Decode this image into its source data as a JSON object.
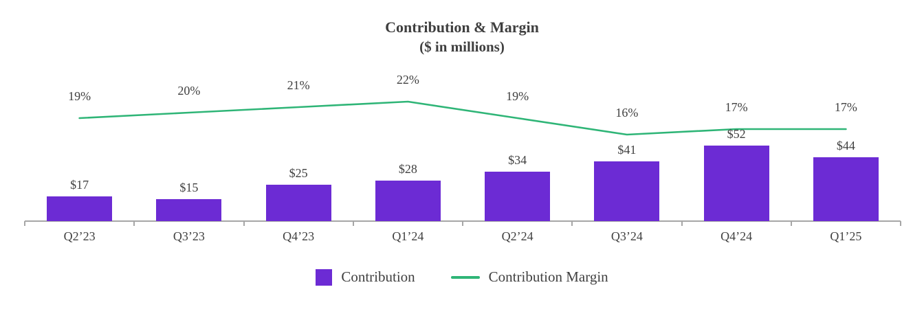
{
  "chart_data": {
    "type": "bar+line",
    "title": "Contribution & Margin",
    "subtitle": "($ in millions)",
    "categories": [
      "Q2’23",
      "Q3’23",
      "Q4’23",
      "Q1’24",
      "Q2’24",
      "Q3’24",
      "Q4’24",
      "Q1’25"
    ],
    "series": [
      {
        "name": "Contribution",
        "type": "bar",
        "values": [
          17,
          15,
          25,
          28,
          34,
          41,
          52,
          44
        ],
        "labels": [
          "$17",
          "$15",
          "$25",
          "$28",
          "$34",
          "$41",
          "$52",
          "$44"
        ],
        "color": "#6c2bd4"
      },
      {
        "name": "Contribution Margin",
        "type": "line",
        "values": [
          19,
          20,
          21,
          22,
          19,
          16,
          17,
          17
        ],
        "labels": [
          "19%",
          "20%",
          "21%",
          "22%",
          "19%",
          "16%",
          "17%",
          "17%"
        ],
        "color": "#2fb577"
      }
    ],
    "legend_position": "bottom",
    "grid": false,
    "axis_color": "#a6a6a6",
    "label_color": "#404040",
    "title_color": "#3f3f3f"
  }
}
